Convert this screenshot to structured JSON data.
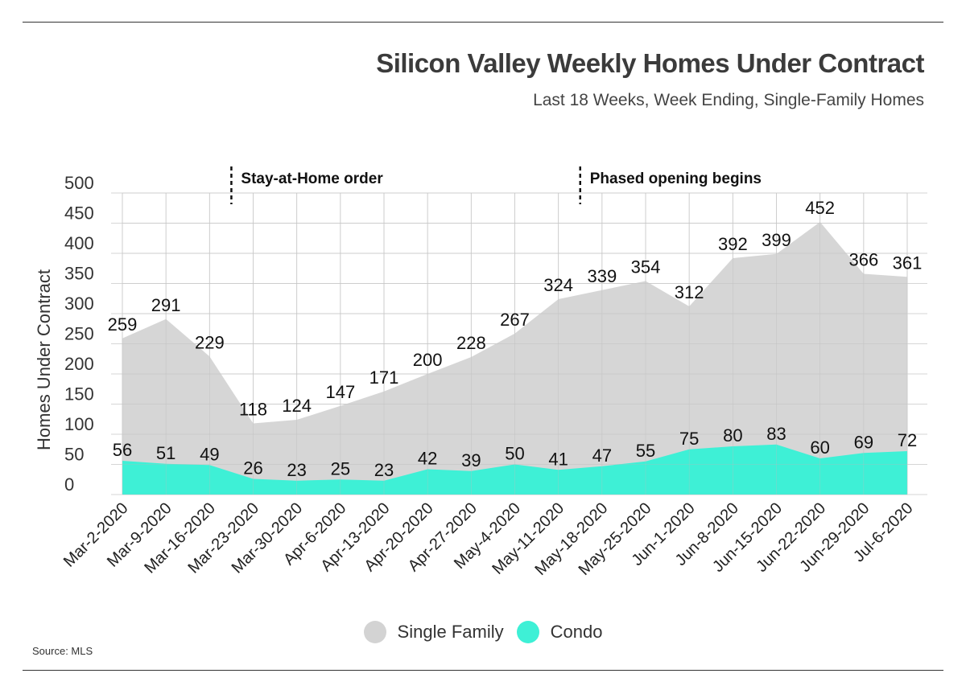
{
  "title": "Silicon Valley Weekly Homes Under Contract",
  "subtitle": "Last 18 Weeks, Week Ending, Single-Family Homes",
  "source": "Source: MLS",
  "colors": {
    "single_family": "#d3d3d3",
    "condo": "#3ef0d6",
    "grid": "#d6d6d6",
    "text": "#222222"
  },
  "chart_data": {
    "type": "area",
    "x": [
      "Mar-2-2020",
      "Mar-9-2020",
      "Mar-16-2020",
      "Mar-23-2020",
      "Mar-30-2020",
      "Apr-6-2020",
      "Apr-13-2020",
      "Apr-20-2020",
      "Apr-27-2020",
      "May-4-2020",
      "May-11-2020",
      "May-18-2020",
      "May-25-2020",
      "Jun-1-2020",
      "Jun-8-2020",
      "Jun-15-2020",
      "Jun-22-2020",
      "Jun-29-2020",
      "Jul-6-2020"
    ],
    "series": [
      {
        "name": "Single Family",
        "values": [
          259,
          291,
          229,
          118,
          124,
          147,
          171,
          200,
          228,
          267,
          324,
          339,
          354,
          312,
          392,
          399,
          452,
          366,
          361
        ]
      },
      {
        "name": "Condo",
        "values": [
          56,
          51,
          49,
          26,
          23,
          25,
          23,
          42,
          39,
          50,
          41,
          47,
          55,
          75,
          80,
          83,
          60,
          69,
          72
        ]
      }
    ],
    "ylabel": "Homes Under Contract",
    "ylim": [
      0,
      500
    ],
    "yticks": [
      "0",
      "50",
      "100",
      "150",
      "200",
      "250",
      "300",
      "350",
      "400",
      "450",
      "500"
    ],
    "grid": true,
    "legend_position": "bottom-center",
    "annotations": [
      {
        "text": "Stay-at-Home order",
        "x": "Mar-23-2020"
      },
      {
        "text": "Phased opening begins",
        "x": "May-18-2020"
      }
    ]
  }
}
